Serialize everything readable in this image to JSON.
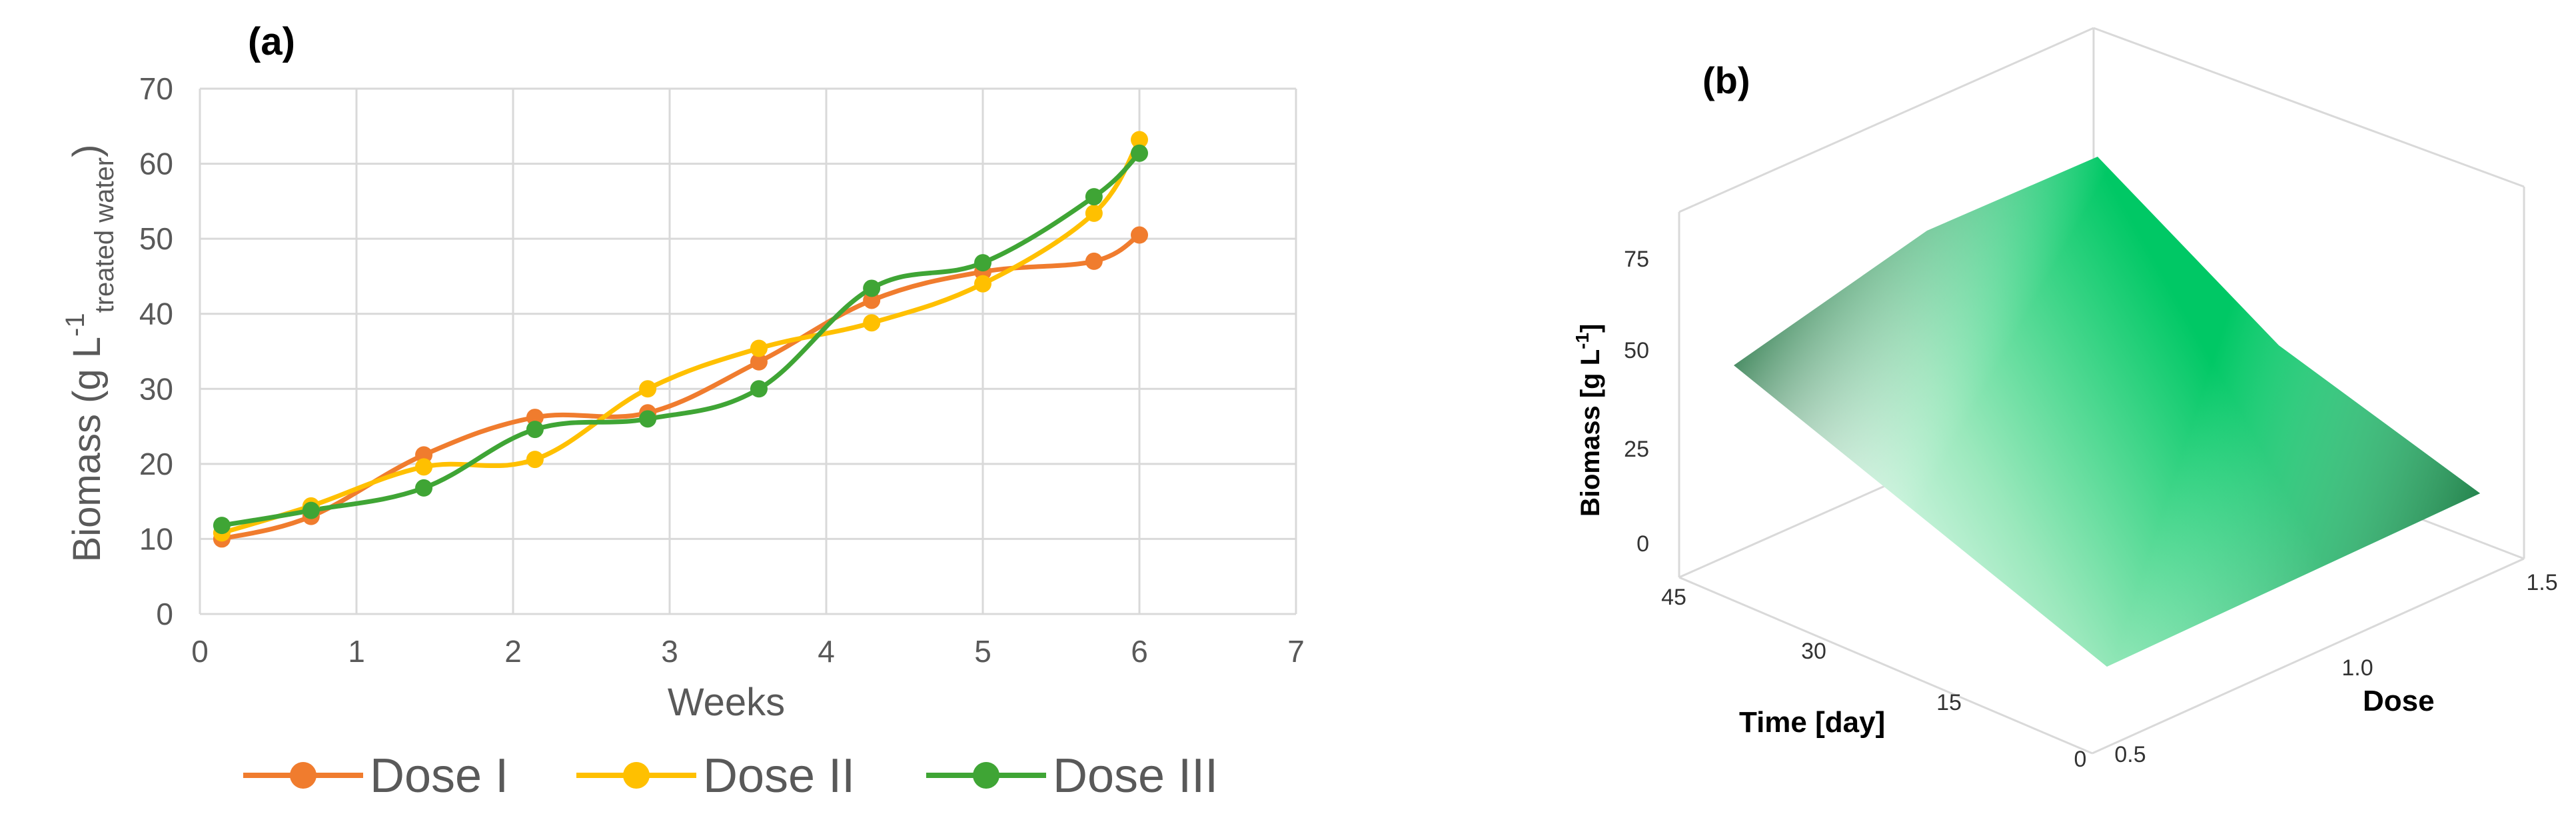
{
  "chart_data": [
    {
      "panel_label": "(a)",
      "type": "line",
      "xlabel": "Weeks",
      "ylabel": "Biomass (g L",
      "ylabel_sup": "-1",
      "ylabel_sub": "treated water",
      "ylabel_close": ")",
      "xlim": [
        0,
        7
      ],
      "ylim": [
        0,
        70
      ],
      "xticks": [
        0,
        1,
        2,
        3,
        4,
        5,
        6,
        7
      ],
      "yticks": [
        0,
        10,
        20,
        30,
        40,
        50,
        60,
        70
      ],
      "grid": true,
      "legend_position": "bottom",
      "smoothed": true,
      "series": [
        {
          "name": "Dose I",
          "color": "#F07C2E",
          "x": [
            0.14,
            0.71,
            1.43,
            2.14,
            2.86,
            3.57,
            4.29,
            5.0,
            5.71,
            6.0
          ],
          "y": [
            10.0,
            13.0,
            21.2,
            26.2,
            26.8,
            33.6,
            41.8,
            45.6,
            47.0,
            50.5
          ]
        },
        {
          "name": "Dose II",
          "color": "#FFC000",
          "x": [
            0.14,
            0.71,
            1.43,
            2.14,
            2.86,
            3.57,
            4.29,
            5.0,
            5.71,
            6.0
          ],
          "y": [
            10.8,
            14.4,
            19.6,
            20.6,
            30.0,
            35.4,
            38.8,
            44.0,
            53.4,
            63.2
          ]
        },
        {
          "name": "Dose III",
          "color": "#3FA535",
          "x": [
            0.14,
            0.71,
            1.43,
            2.14,
            2.86,
            3.57,
            4.29,
            5.0,
            5.71,
            6.0
          ],
          "y": [
            11.8,
            13.8,
            16.8,
            24.6,
            26.0,
            30.0,
            43.4,
            46.8,
            55.6,
            61.4
          ]
        }
      ]
    },
    {
      "panel_label": "(b)",
      "type": "surface3d",
      "zlabel": "Biomass [g L",
      "zlabel_sup": "-1",
      "zlabel_close": "]",
      "xlabel": "Time [day]",
      "ylabel": "Dose",
      "zticks": [
        "0",
        "25",
        "50",
        "75"
      ],
      "xticks": [
        "0",
        "15",
        "30",
        "45"
      ],
      "yticks": [
        "0.5",
        "1.0",
        "1.5"
      ],
      "corner_values": [
        {
          "time": 0,
          "dose": 0.5,
          "biomass": 10
        },
        {
          "time": 45,
          "dose": 0.5,
          "biomass": 45
        },
        {
          "time": 45,
          "dose": 1.5,
          "biomass": 65
        },
        {
          "time": 0,
          "dose": 1.5,
          "biomass": 13
        }
      ],
      "colors": {
        "low": "#FFFFFF",
        "mid": "#7DE3A8",
        "high": "#00C865",
        "edge": "#3E8F5F"
      }
    }
  ]
}
